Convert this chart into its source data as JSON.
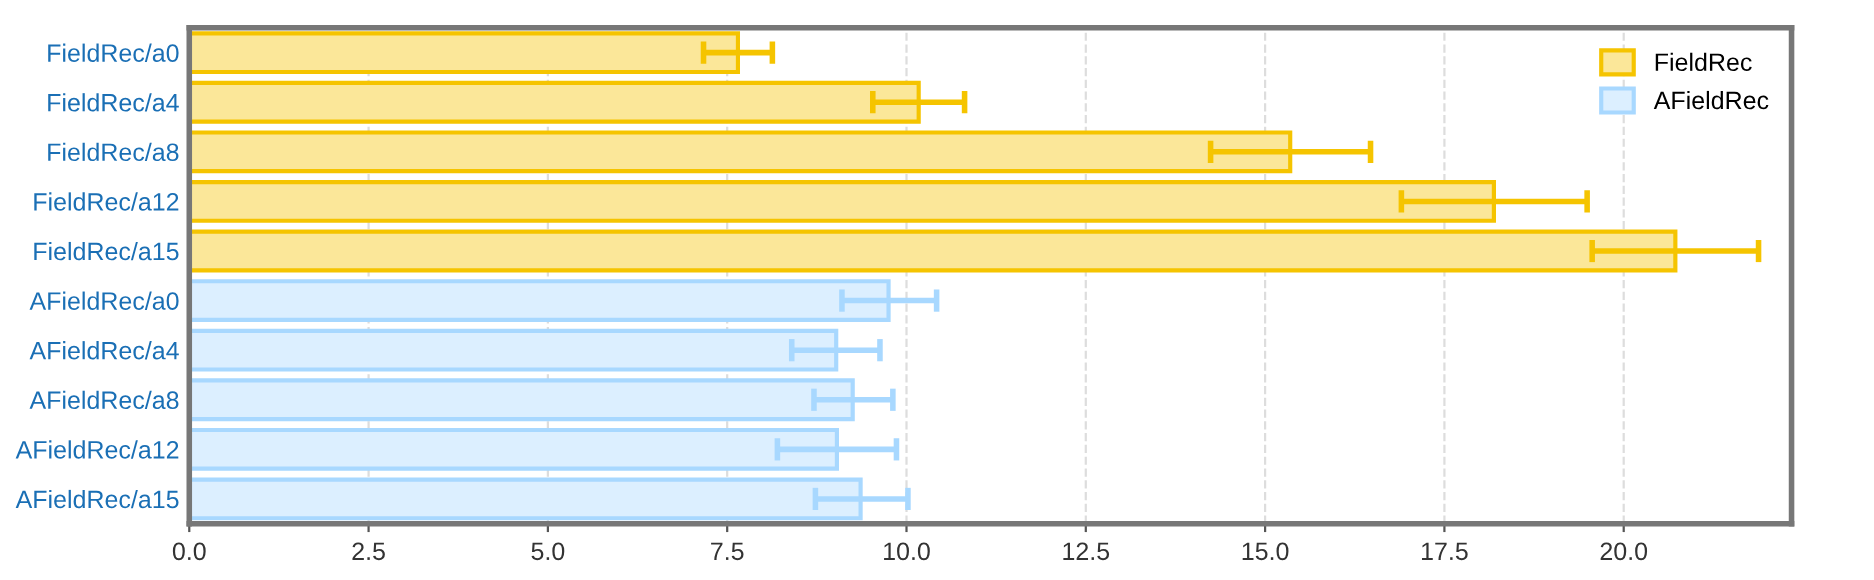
{
  "chart_data": {
    "type": "bar",
    "orientation": "horizontal",
    "categories": [
      "FieldRec/a0",
      "FieldRec/a4",
      "FieldRec/a8",
      "FieldRec/a12",
      "FieldRec/a15",
      "AFieldRec/a0",
      "AFieldRec/a4",
      "AFieldRec/a8",
      "AFieldRec/a12",
      "AFieldRec/a15"
    ],
    "series": [
      {
        "name": "FieldRec",
        "color": "#f5c400",
        "values": [
          7.65,
          10.17,
          15.35,
          18.19,
          20.72,
          null,
          null,
          null,
          null,
          null
        ],
        "errors": [
          [
            7.17,
            8.13
          ],
          [
            9.53,
            10.81
          ],
          [
            14.24,
            16.47
          ],
          [
            16.9,
            19.49
          ],
          [
            19.56,
            21.88
          ],
          null,
          null,
          null,
          null,
          null
        ]
      },
      {
        "name": "AFieldRec",
        "color": "#a8d8ff",
        "values": [
          null,
          null,
          null,
          null,
          null,
          9.75,
          9.02,
          9.25,
          9.03,
          9.36
        ],
        "errors": [
          null,
          null,
          null,
          null,
          null,
          [
            9.1,
            10.42
          ],
          [
            8.4,
            9.63
          ],
          [
            8.71,
            9.81
          ],
          [
            8.2,
            9.86
          ],
          [
            8.73,
            10.02
          ]
        ]
      }
    ],
    "xlim": [
      0,
      22.34
    ],
    "xticks": [
      {
        "value": 0,
        "label": "0.0"
      },
      {
        "value": 2.5,
        "label": "2.5"
      },
      {
        "value": 5,
        "label": "5.0"
      },
      {
        "value": 7.5,
        "label": "7.5"
      },
      {
        "value": 10,
        "label": "10.0"
      },
      {
        "value": 12.5,
        "label": "12.5"
      },
      {
        "value": 15,
        "label": "15.0"
      },
      {
        "value": 17.5,
        "label": "17.5"
      },
      {
        "value": 20,
        "label": "20.0"
      }
    ],
    "grid": "x",
    "legend": "top right"
  }
}
